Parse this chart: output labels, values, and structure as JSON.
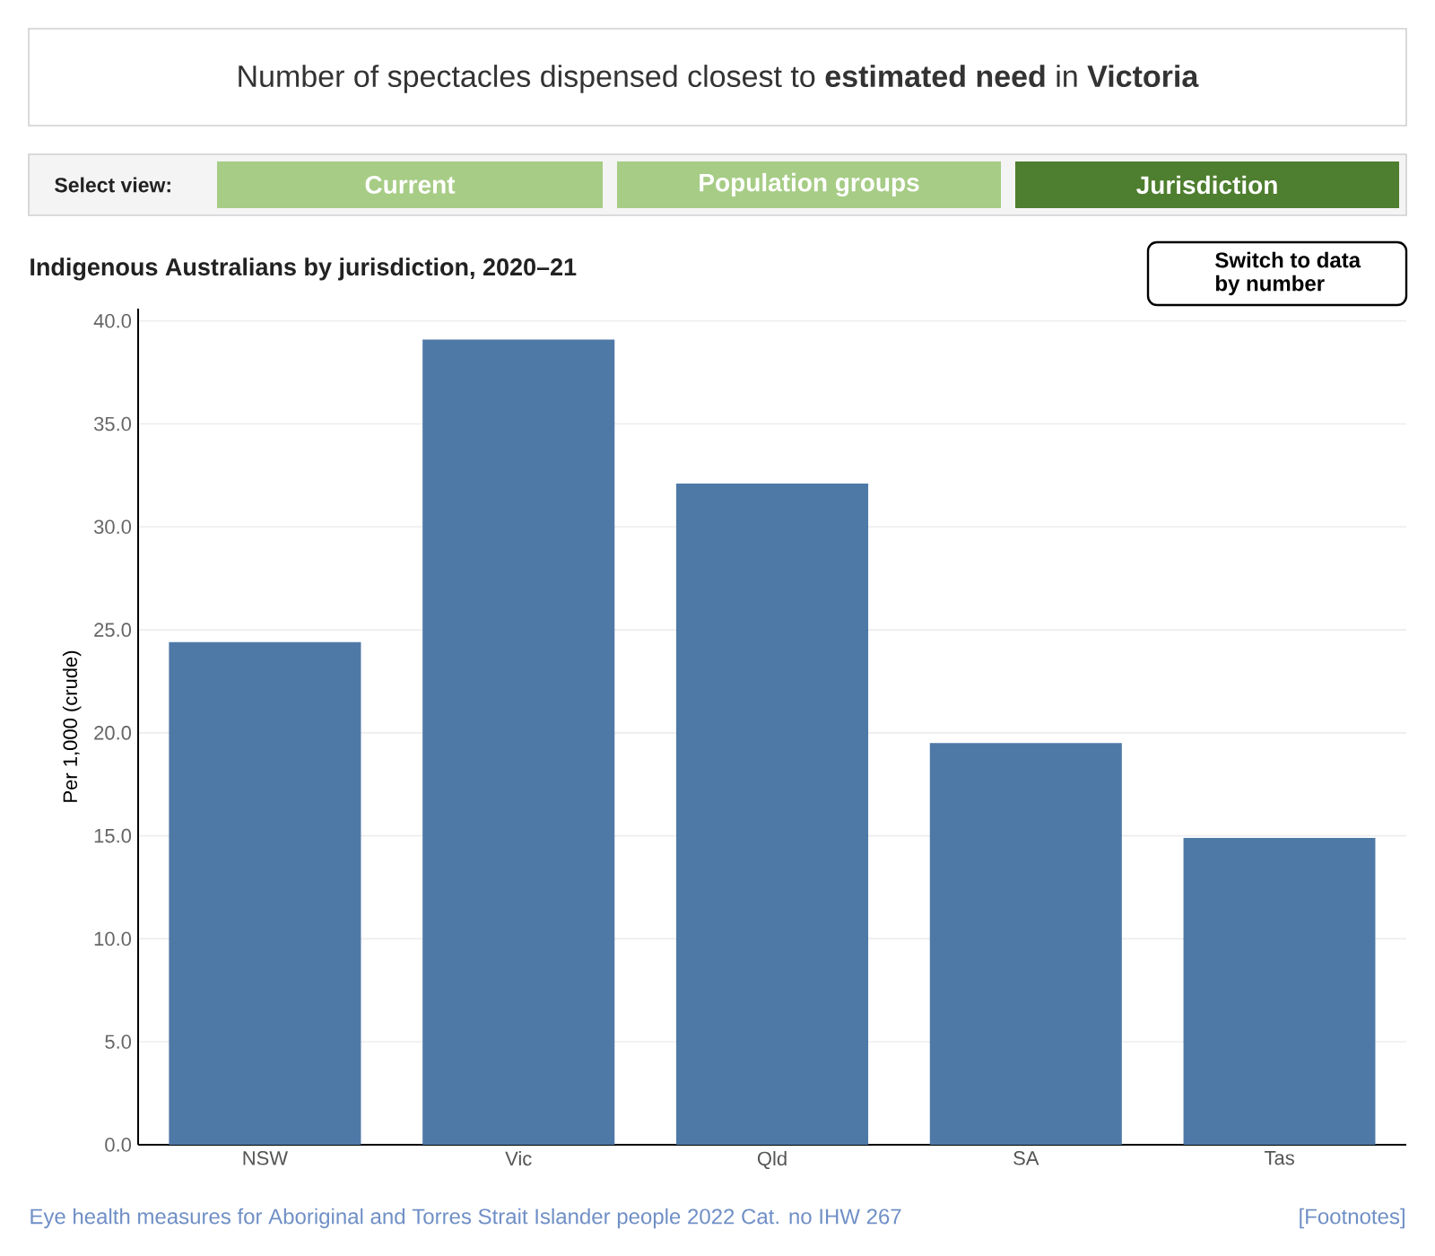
{
  "chart_data": {
    "type": "bar",
    "title": "Number of spectacles dispensed closest to **estimated need** in **Victoria**",
    "subtitle": "Indigenous Australians by jurisdiction, 2020–21",
    "ylabel": "Per 1,000 (crude)",
    "categories": [
      "NSW",
      "Vic",
      "Qld",
      "SA",
      "Tas"
    ],
    "values": [
      24.4,
      39.1,
      32.1,
      19.5,
      14.9
    ],
    "color": "#4e79a7",
    "ylim": [
      0,
      40.6
    ],
    "yticks": [
      {
        "value": 0,
        "label": "0.0"
      },
      {
        "value": 5,
        "label": "5.0"
      },
      {
        "value": 10,
        "label": "10.0"
      },
      {
        "value": 15,
        "label": "15.0"
      },
      {
        "value": 20,
        "label": "20.0"
      },
      {
        "value": 25,
        "label": "25.0"
      },
      {
        "value": 30,
        "label": "30.0"
      },
      {
        "value": 35,
        "label": "35.0"
      },
      {
        "value": 40,
        "label": "40.0"
      }
    ],
    "grid": "y",
    "annotations": [
      "Select view:",
      "Current",
      "Population groups",
      "Jurisdiction",
      "Switch to data by number",
      "Eye health measures for Aboriginal and Torres Strait Islander people 2022 Cat. no IHW 267",
      "[Footnotes]"
    ]
  }
}
